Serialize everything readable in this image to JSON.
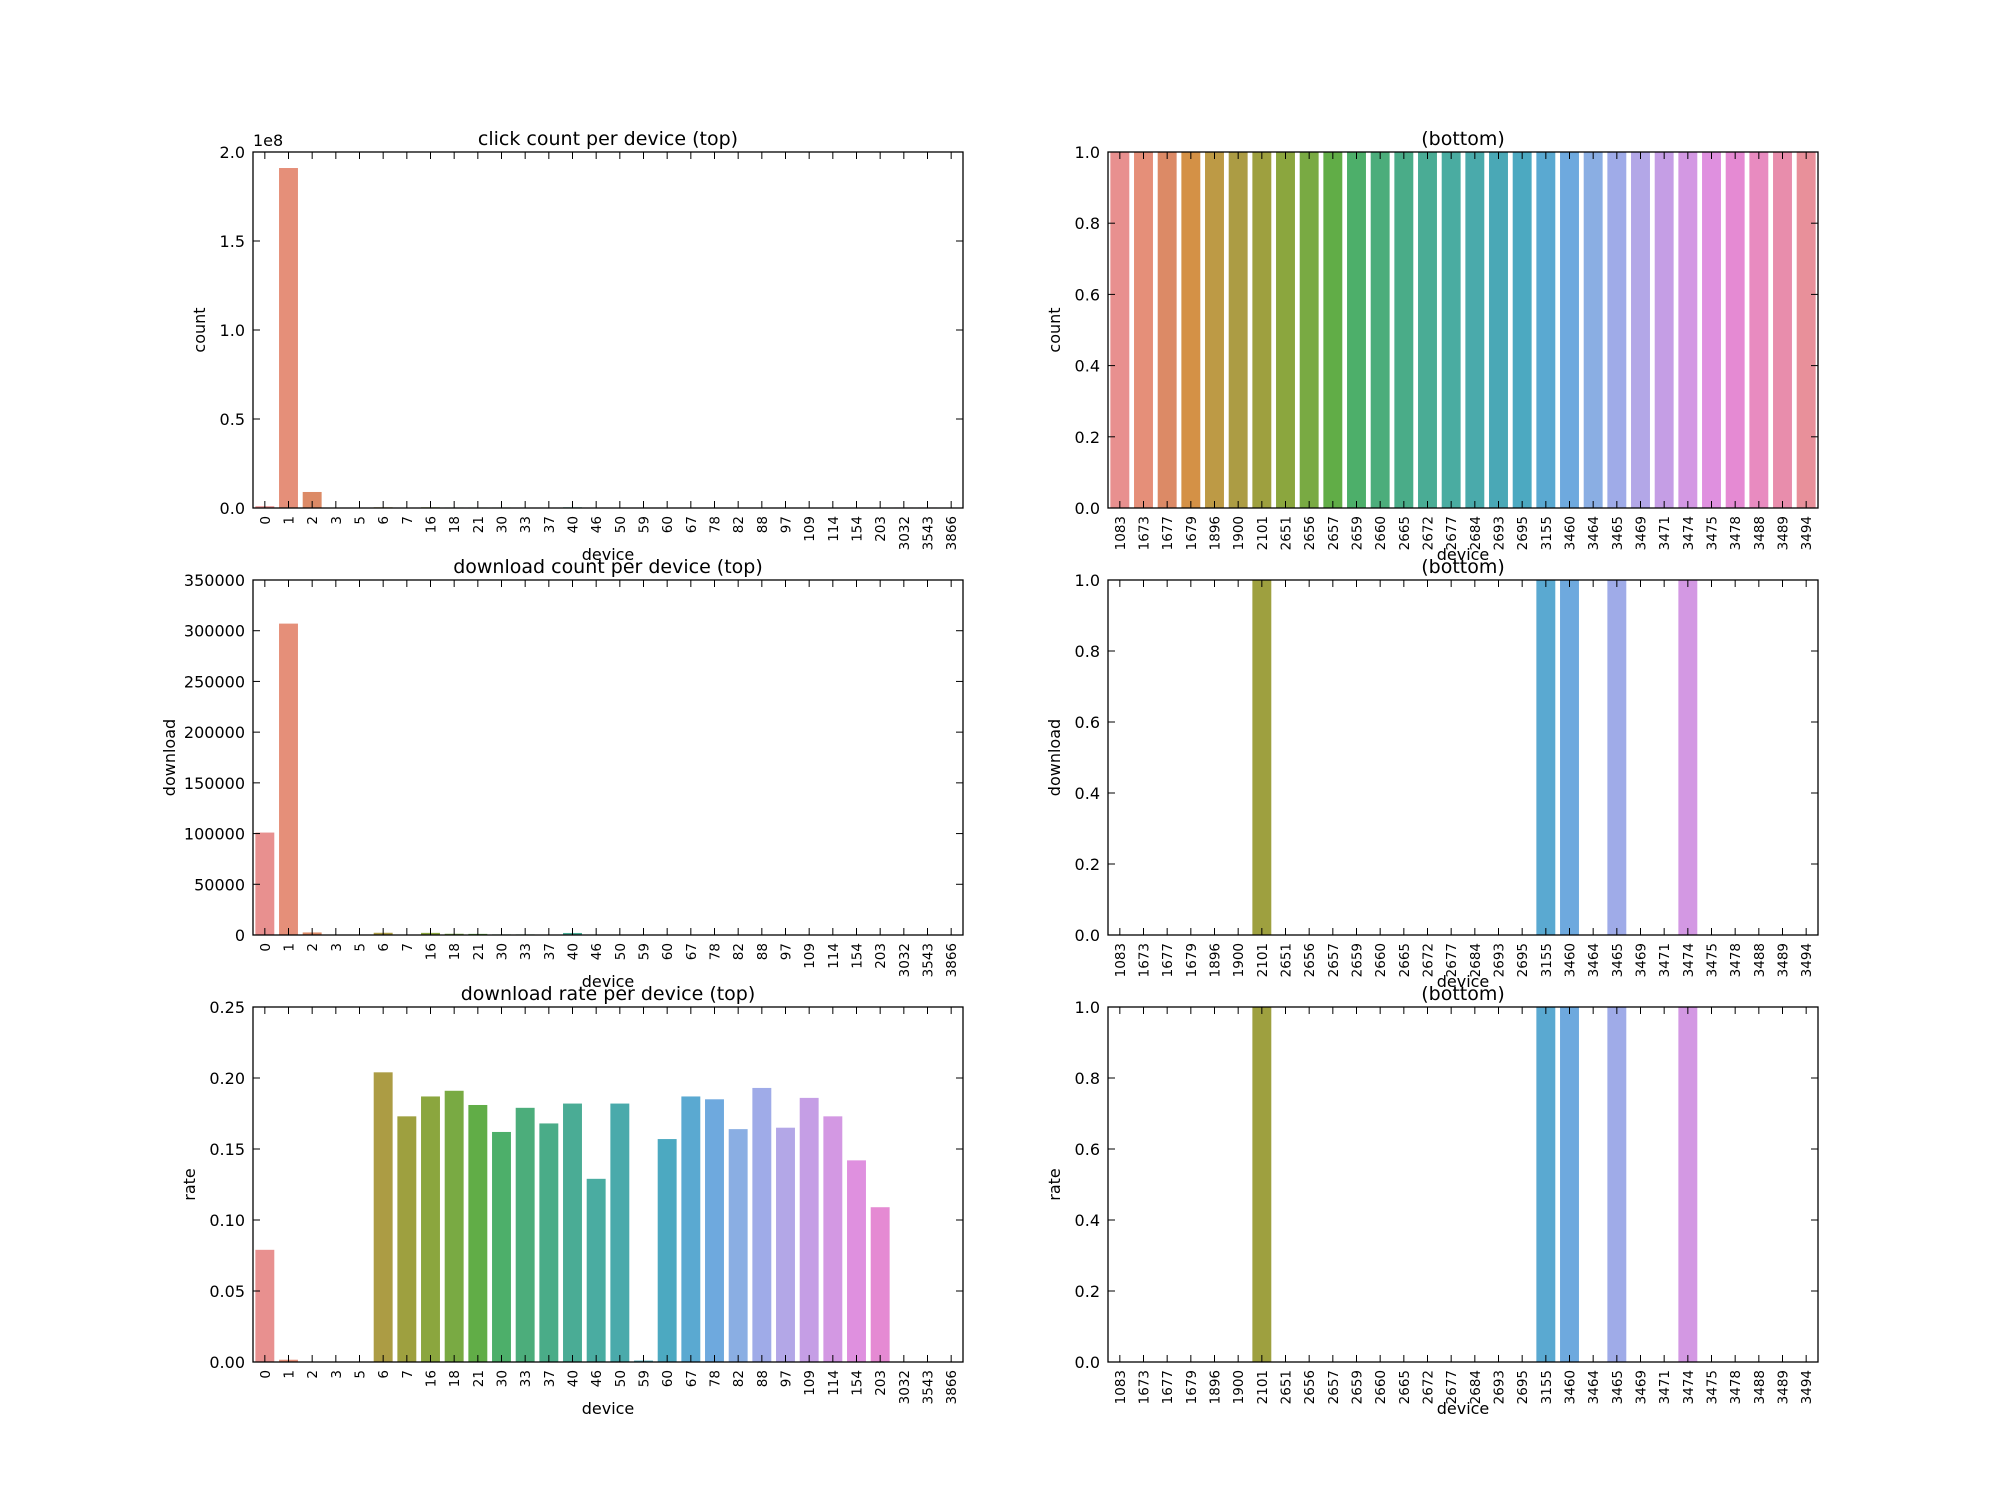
{
  "chart_data": [
    {
      "type": "bar",
      "title": "click count per device (top)",
      "xlabel": "device",
      "ylabel": "count",
      "y_offset_text": "1e8",
      "ylim": [
        0,
        2.0
      ],
      "yticks": [
        "0.0",
        "0.5",
        "1.0",
        "1.5",
        "2.0"
      ],
      "categories": [
        "0",
        "1",
        "2",
        "3",
        "5",
        "6",
        "7",
        "16",
        "18",
        "21",
        "30",
        "33",
        "37",
        "40",
        "46",
        "50",
        "59",
        "60",
        "67",
        "78",
        "82",
        "88",
        "97",
        "109",
        "114",
        "154",
        "203",
        "3032",
        "3543",
        "3866"
      ],
      "values": [
        0.01,
        1.91,
        0.09,
        0.002,
        0.001,
        0.004,
        0.002,
        0.004,
        0.003,
        0.003,
        0.003,
        0.002,
        0.002,
        0.004,
        0.002,
        0.002,
        0.001,
        0.002,
        0.002,
        0.002,
        0.001,
        0.001,
        0.001,
        0.002,
        0.001,
        0.002,
        0.002,
        0.003,
        0.003,
        0.001
      ],
      "colors": [
        "#e8908f",
        "#e58f79",
        "#dc8a66",
        "#d49146",
        "#bd9a45",
        "#ac9c44",
        "#9ea03f",
        "#8ba63e",
        "#79aa43",
        "#61ad47",
        "#4daf6a",
        "#4cad7b",
        "#4aac88",
        "#4aac95",
        "#4aaca1",
        "#4aaaab",
        "#4aa8b6",
        "#4ca9c1",
        "#5aa9d1",
        "#6ea9de",
        "#8aaee3",
        "#9fabe8",
        "#b3a7e7",
        "#c59ee5",
        "#d398e3",
        "#df90df",
        "#e58ad3",
        "#e88bc0",
        "#e88dac",
        "#e8909a"
      ]
    },
    {
      "type": "bar",
      "title": "(bottom)",
      "xlabel": "device",
      "ylabel": "count",
      "ylim": [
        0,
        1.0
      ],
      "yticks": [
        "0.0",
        "0.2",
        "0.4",
        "0.6",
        "0.8",
        "1.0"
      ],
      "categories": [
        "1083",
        "1673",
        "1677",
        "1679",
        "1896",
        "1900",
        "2101",
        "2651",
        "2656",
        "2657",
        "2659",
        "2660",
        "2665",
        "2672",
        "2677",
        "2684",
        "2693",
        "2695",
        "3155",
        "3460",
        "3464",
        "3465",
        "3469",
        "3471",
        "3474",
        "3475",
        "3478",
        "3488",
        "3489",
        "3494"
      ],
      "values": [
        1,
        1,
        1,
        1,
        1,
        1,
        1,
        1,
        1,
        1,
        1,
        1,
        1,
        1,
        1,
        1,
        1,
        1,
        1,
        1,
        1,
        1,
        1,
        1,
        1,
        1,
        1,
        1,
        1,
        1
      ],
      "colors": [
        "#e8908f",
        "#e58f79",
        "#dc8a66",
        "#d49146",
        "#bd9a45",
        "#ac9c44",
        "#9ea03f",
        "#8ba63e",
        "#79aa43",
        "#61ad47",
        "#4daf6a",
        "#4cad7b",
        "#4aac88",
        "#4aac95",
        "#4aaca1",
        "#4aaaab",
        "#4aa8b6",
        "#4ca9c1",
        "#5aa9d1",
        "#6ea9de",
        "#8aaee3",
        "#9fabe8",
        "#b3a7e7",
        "#c59ee5",
        "#d398e3",
        "#df90df",
        "#e58ad3",
        "#e88bc0",
        "#e88dac",
        "#e8909a"
      ]
    },
    {
      "type": "bar",
      "title": "download count per device (top)",
      "xlabel": "device",
      "ylabel": "download",
      "ylim": [
        0,
        350000
      ],
      "yticks": [
        "0",
        "50000",
        "100000",
        "150000",
        "200000",
        "250000",
        "300000",
        "350000"
      ],
      "categories": [
        "0",
        "1",
        "2",
        "3",
        "5",
        "6",
        "7",
        "16",
        "18",
        "21",
        "30",
        "33",
        "37",
        "40",
        "46",
        "50",
        "59",
        "60",
        "67",
        "78",
        "82",
        "88",
        "97",
        "109",
        "114",
        "154",
        "203",
        "3032",
        "3543",
        "3866"
      ],
      "values": [
        101000,
        307000,
        2500,
        150,
        80,
        2200,
        400,
        2100,
        1200,
        1100,
        600,
        600,
        400,
        2000,
        300,
        300,
        100,
        300,
        300,
        300,
        200,
        200,
        200,
        300,
        150,
        300,
        200,
        0,
        0,
        0
      ],
      "colors": [
        "#e8908f",
        "#e58f79",
        "#dc8a66",
        "#d49146",
        "#bd9a45",
        "#ac9c44",
        "#9ea03f",
        "#8ba63e",
        "#79aa43",
        "#61ad47",
        "#4daf6a",
        "#4cad7b",
        "#4aac88",
        "#4aac95",
        "#4aaca1",
        "#4aaaab",
        "#4aa8b6",
        "#4ca9c1",
        "#5aa9d1",
        "#6ea9de",
        "#8aaee3",
        "#9fabe8",
        "#b3a7e7",
        "#c59ee5",
        "#d398e3",
        "#df90df",
        "#e58ad3",
        "#e88bc0",
        "#e88dac",
        "#e8909a"
      ]
    },
    {
      "type": "bar",
      "title": "(bottom)",
      "xlabel": "device",
      "ylabel": "download",
      "ylim": [
        0,
        1.0
      ],
      "yticks": [
        "0.0",
        "0.2",
        "0.4",
        "0.6",
        "0.8",
        "1.0"
      ],
      "categories": [
        "1083",
        "1673",
        "1677",
        "1679",
        "1896",
        "1900",
        "2101",
        "2651",
        "2656",
        "2657",
        "2659",
        "2660",
        "2665",
        "2672",
        "2677",
        "2684",
        "2693",
        "2695",
        "3155",
        "3460",
        "3464",
        "3465",
        "3469",
        "3471",
        "3474",
        "3475",
        "3478",
        "3488",
        "3489",
        "3494"
      ],
      "values": [
        0,
        0,
        0,
        0,
        0,
        0,
        1,
        0,
        0,
        0,
        0,
        0,
        0,
        0,
        0,
        0,
        0,
        0,
        1,
        1,
        0,
        1,
        0,
        0,
        1,
        0,
        0,
        0,
        0,
        0
      ],
      "colors": [
        "#e8908f",
        "#e58f79",
        "#dc8a66",
        "#d49146",
        "#bd9a45",
        "#ac9c44",
        "#9ea03f",
        "#8ba63e",
        "#79aa43",
        "#61ad47",
        "#4daf6a",
        "#4cad7b",
        "#4aac88",
        "#4aac95",
        "#4aaca1",
        "#4aaaab",
        "#4aa8b6",
        "#4ca9c1",
        "#5aa9d1",
        "#6ea9de",
        "#8aaee3",
        "#9fabe8",
        "#b3a7e7",
        "#c59ee5",
        "#d398e3",
        "#df90df",
        "#e58ad3",
        "#e88bc0",
        "#e88dac",
        "#e8909a"
      ]
    },
    {
      "type": "bar",
      "title": "download rate per device (top)",
      "xlabel": "device",
      "ylabel": "rate",
      "ylim": [
        0,
        0.25
      ],
      "yticks": [
        "0.00",
        "0.05",
        "0.10",
        "0.15",
        "0.20",
        "0.25"
      ],
      "categories": [
        "0",
        "1",
        "2",
        "3",
        "5",
        "6",
        "7",
        "16",
        "18",
        "21",
        "30",
        "33",
        "37",
        "40",
        "46",
        "50",
        "59",
        "60",
        "67",
        "78",
        "82",
        "88",
        "97",
        "109",
        "114",
        "154",
        "203",
        "3032",
        "3543",
        "3866"
      ],
      "values": [
        0.079,
        0.0016,
        0,
        0,
        0,
        0.204,
        0.173,
        0.187,
        0.191,
        0.181,
        0.162,
        0.179,
        0.168,
        0.182,
        0.129,
        0.182,
        0.001,
        0.157,
        0.187,
        0.185,
        0.164,
        0.193,
        0.165,
        0.186,
        0.173,
        0.142,
        0.109,
        0,
        0,
        0
      ],
      "colors": [
        "#e8908f",
        "#e58f79",
        "#dc8a66",
        "#d49146",
        "#bd9a45",
        "#ac9c44",
        "#9ea03f",
        "#8ba63e",
        "#79aa43",
        "#61ad47",
        "#4daf6a",
        "#4cad7b",
        "#4aac88",
        "#4aac95",
        "#4aaca1",
        "#4aaaab",
        "#4aa8b6",
        "#4ca9c1",
        "#5aa9d1",
        "#6ea9de",
        "#8aaee3",
        "#9fabe8",
        "#b3a7e7",
        "#c59ee5",
        "#d398e3",
        "#df90df",
        "#e58ad3",
        "#e88bc0",
        "#e88dac",
        "#e8909a"
      ]
    },
    {
      "type": "bar",
      "title": "(bottom)",
      "xlabel": "device",
      "ylabel": "rate",
      "ylim": [
        0,
        1.0
      ],
      "yticks": [
        "0.0",
        "0.2",
        "0.4",
        "0.6",
        "0.8",
        "1.0"
      ],
      "categories": [
        "1083",
        "1673",
        "1677",
        "1679",
        "1896",
        "1900",
        "2101",
        "2651",
        "2656",
        "2657",
        "2659",
        "2660",
        "2665",
        "2672",
        "2677",
        "2684",
        "2693",
        "2695",
        "3155",
        "3460",
        "3464",
        "3465",
        "3469",
        "3471",
        "3474",
        "3475",
        "3478",
        "3488",
        "3489",
        "3494"
      ],
      "values": [
        0,
        0,
        0,
        0,
        0,
        0,
        1,
        0,
        0,
        0,
        0,
        0,
        0,
        0,
        0,
        0,
        0,
        0,
        1,
        1,
        0,
        1,
        0,
        0,
        1,
        0,
        0,
        0,
        0,
        0
      ],
      "colors": [
        "#e8908f",
        "#e58f79",
        "#dc8a66",
        "#d49146",
        "#bd9a45",
        "#ac9c44",
        "#9ea03f",
        "#8ba63e",
        "#79aa43",
        "#61ad47",
        "#4daf6a",
        "#4cad7b",
        "#4aac88",
        "#4aac95",
        "#4aaca1",
        "#4aaaab",
        "#4aa8b6",
        "#4ca9c1",
        "#5aa9d1",
        "#6ea9de",
        "#8aaee3",
        "#9fabe8",
        "#b3a7e7",
        "#c59ee5",
        "#d398e3",
        "#df90df",
        "#e58ad3",
        "#e88bc0",
        "#e88dac",
        "#e8909a"
      ]
    }
  ]
}
